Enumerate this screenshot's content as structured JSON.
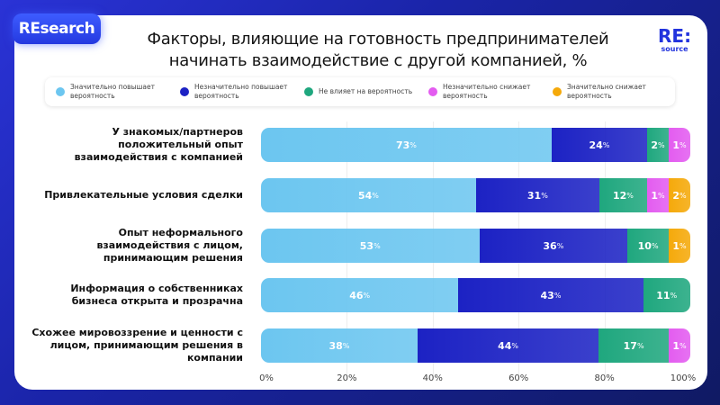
{
  "badge": "REsearch",
  "logo": {
    "line1": "RE:",
    "line2": "source"
  },
  "chart_data": {
    "type": "bar",
    "orientation": "horizontal",
    "stacked": true,
    "title": "Факторы, влияющие на готовность предпринимателей начинать взаимодействие с другой компанией, %",
    "legend_position": "top",
    "categories": [
      "У знакомых/партнеров положительный опыт взаимодействия с компанией",
      "Привлекательные условия сделки",
      "Опыт неформального взаимодействия с лицом, принимающим решения",
      "Информация о собственниках бизнеса открыта и прозрачна",
      "Схожее мировоззрение и ценности с лицом, принимающим решения в компании"
    ],
    "series": [
      {
        "name": "Значительно повышает вероятность",
        "color": "#6cc6f0",
        "values": [
          73,
          54,
          53,
          46,
          38
        ]
      },
      {
        "name": "Незначительно повышает вероятность",
        "color": "#1c22c4",
        "values": [
          24,
          31,
          36,
          43,
          44
        ]
      },
      {
        "name": "Не влияет на вероятность",
        "color": "#1fa77e",
        "values": [
          2,
          12,
          10,
          11,
          17
        ]
      },
      {
        "name": "Незначительно снижает вероятность",
        "color": "#e35cf0",
        "values": [
          1,
          1,
          0,
          0,
          1
        ]
      },
      {
        "name": "Значительно снижает вероятность",
        "color": "#f5a90a",
        "values": [
          0,
          2,
          1,
          0,
          0
        ]
      }
    ],
    "xlim": [
      0,
      100
    ],
    "xticks": [
      "0%",
      "20%",
      "40%",
      "60%",
      "80%",
      "100%"
    ],
    "value_suffix": "%",
    "grid": true
  }
}
